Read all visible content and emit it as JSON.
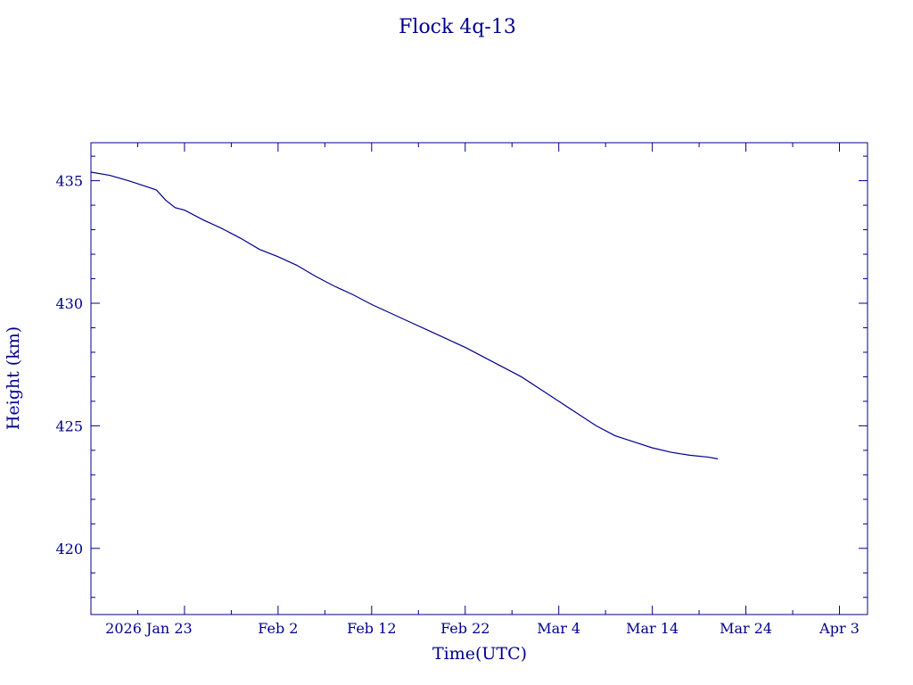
{
  "chart_data": {
    "type": "line",
    "title": "Flock 4q-13",
    "xlabel": "Time(UTC)",
    "ylabel": "Height (km)",
    "x_tick_labels": [
      "2026 Jan 23",
      "Feb  2",
      "Feb 12",
      "Feb 22",
      "Mar  4",
      "Mar 14",
      "Mar 24",
      "Apr  3"
    ],
    "x_tick_dates": [
      "2026-01-23",
      "2026-02-02",
      "2026-02-12",
      "2026-02-22",
      "2026-03-04",
      "2026-03-14",
      "2026-03-24",
      "2026-04-03"
    ],
    "xlim": [
      "2026-01-13",
      "2026-04-06"
    ],
    "y_ticks": [
      420,
      425,
      430,
      435
    ],
    "y_tick_labels": [
      "420",
      "425",
      "430",
      "435"
    ],
    "ylim": [
      417.3,
      436.55
    ],
    "grid": false,
    "color": "#00008b",
    "series": [
      {
        "x": [
          "2026-01-13",
          "2026-01-15",
          "2026-01-17",
          "2026-01-19",
          "2026-01-20",
          "2026-01-21",
          "2026-01-22",
          "2026-01-23",
          "2026-01-25",
          "2026-01-27",
          "2026-01-29",
          "2026-01-31",
          "2026-02-02",
          "2026-02-04",
          "2026-02-06",
          "2026-02-08",
          "2026-02-10",
          "2026-02-12",
          "2026-02-14",
          "2026-02-16",
          "2026-02-18",
          "2026-02-20",
          "2026-02-22",
          "2026-02-24",
          "2026-02-26",
          "2026-02-28",
          "2026-03-02",
          "2026-03-04",
          "2026-03-06",
          "2026-03-08",
          "2026-03-10",
          "2026-03-12",
          "2026-03-14",
          "2026-03-16",
          "2026-03-18",
          "2026-03-20",
          "2026-03-21"
        ],
        "y": [
          435.35,
          435.22,
          435.0,
          434.75,
          434.62,
          434.2,
          433.9,
          433.8,
          433.4,
          433.05,
          432.65,
          432.2,
          431.9,
          431.55,
          431.1,
          430.7,
          430.35,
          429.95,
          429.6,
          429.25,
          428.9,
          428.55,
          428.2,
          427.8,
          427.4,
          427.0,
          426.5,
          426.0,
          425.5,
          425.0,
          424.6,
          424.35,
          424.1,
          423.92,
          423.8,
          423.72,
          423.65
        ]
      }
    ]
  }
}
